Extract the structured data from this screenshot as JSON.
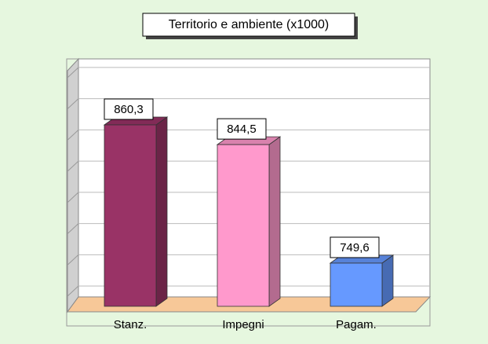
{
  "chart_data": {
    "type": "bar",
    "title": "Territorio e ambiente (x1000)",
    "categories": [
      "Stanz.",
      "Impegni",
      "Pagam."
    ],
    "values": [
      860.3,
      844.5,
      749.6
    ],
    "value_labels": [
      "860,3",
      "844,5",
      "749,6"
    ],
    "colors": [
      "#993366",
      "#ff99cc",
      "#6699ff"
    ],
    "ylim": [
      715,
      910
    ],
    "yticks": [
      725,
      750,
      775,
      800,
      825,
      850,
      875,
      900
    ],
    "grid": true
  }
}
